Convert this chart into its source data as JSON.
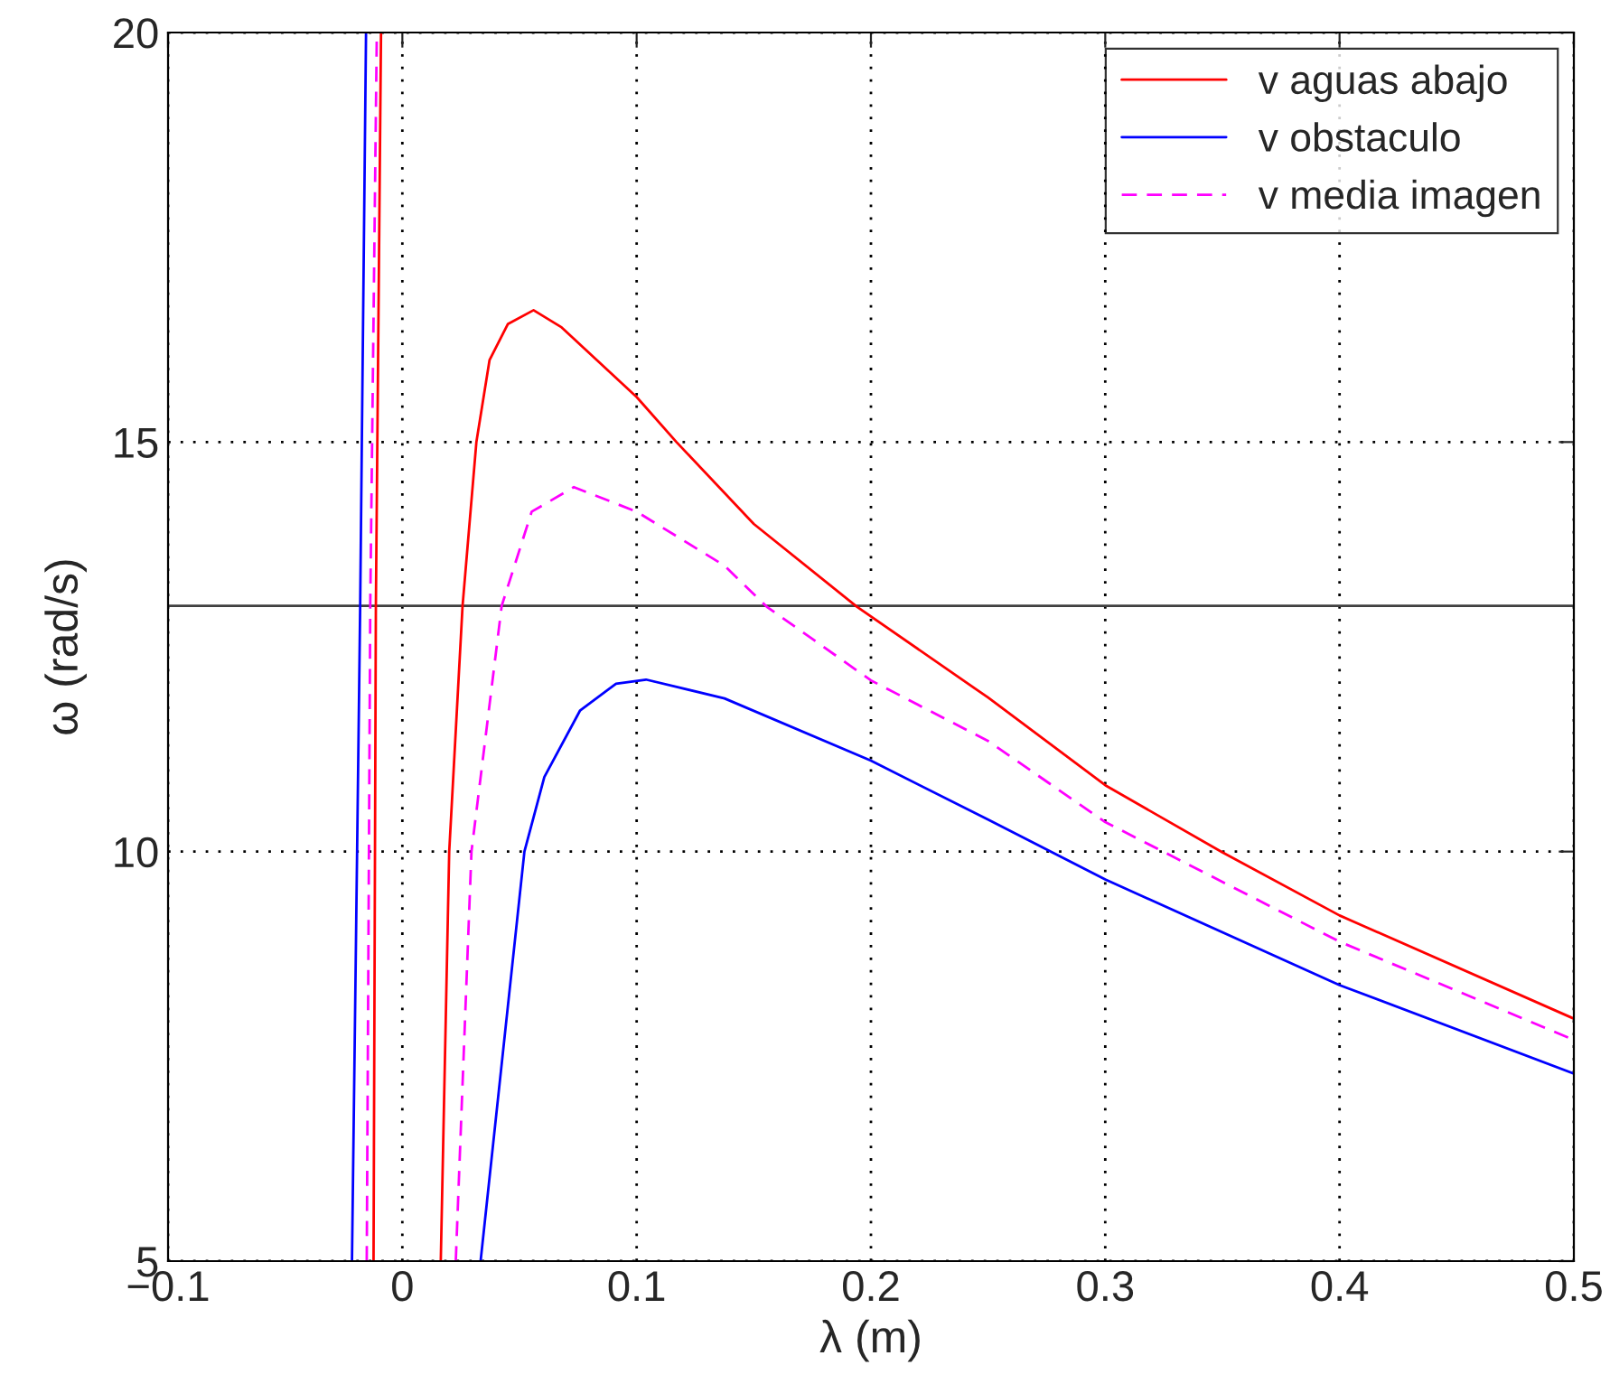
{
  "chart_data": {
    "type": "line",
    "xlabel": "λ (m)",
    "ylabel": "ω (rad/s)",
    "xlim": [
      -0.1,
      0.5
    ],
    "ylim": [
      5,
      20
    ],
    "xticks": [
      {
        "value": -0.1,
        "label": "−0.1"
      },
      0,
      0.1,
      0.2,
      0.3,
      0.4,
      0.5
    ],
    "yticks": [
      5,
      10,
      15,
      20
    ],
    "grid": true,
    "legend": "top right",
    "ref_lines": [
      {
        "axis": "y",
        "value": 13,
        "color": "#404040",
        "line_style": "solid"
      }
    ],
    "series": [
      {
        "name": "v aguas abajo",
        "color": "#ff0000",
        "line_style": "solid",
        "x": [
          -0.0123,
          -0.0113,
          -0.0091,
          null,
          0.0164,
          0.02,
          0.0257,
          0.0316,
          0.0372,
          0.045,
          0.056,
          0.068,
          0.1,
          0.117,
          0.15,
          0.194,
          0.25,
          0.3,
          0.35,
          0.4,
          0.5
        ],
        "values": [
          5,
          13,
          20,
          null,
          5,
          10,
          13,
          15,
          16.0,
          16.44,
          16.61,
          16.4,
          15.55,
          15.0,
          14.0,
          12.99,
          11.88,
          10.81,
          9.99,
          9.22,
          7.96
        ]
      },
      {
        "name": "v obstaculo",
        "color": "#0000ff",
        "line_style": "solid",
        "x": [
          -0.0215,
          -0.018,
          -0.0155,
          null,
          0.0334,
          0.0521,
          0.0606,
          0.0758,
          0.0912,
          0.104,
          0.1375,
          0.2,
          0.25,
          0.3,
          0.4,
          0.5
        ],
        "values": [
          5,
          13,
          20,
          null,
          5,
          10,
          10.91,
          11.72,
          12.05,
          12.1,
          11.87,
          11.11,
          10.39,
          9.66,
          8.37,
          7.29
        ]
      },
      {
        "name": "v media imagen",
        "color": "#ff00ff",
        "line_style": "dashed",
        "x": [
          -0.0152,
          -0.0137,
          -0.0109,
          null,
          0.0228,
          0.0295,
          0.0424,
          0.0552,
          0.0732,
          0.1,
          0.1375,
          0.1555,
          0.2,
          0.25,
          0.3,
          0.4,
          0.5
        ],
        "values": [
          5,
          13,
          20,
          null,
          5,
          10,
          13,
          14.15,
          14.45,
          14.15,
          13.49,
          12.99,
          12.09,
          11.35,
          10.36,
          8.9,
          7.7
        ]
      }
    ]
  }
}
